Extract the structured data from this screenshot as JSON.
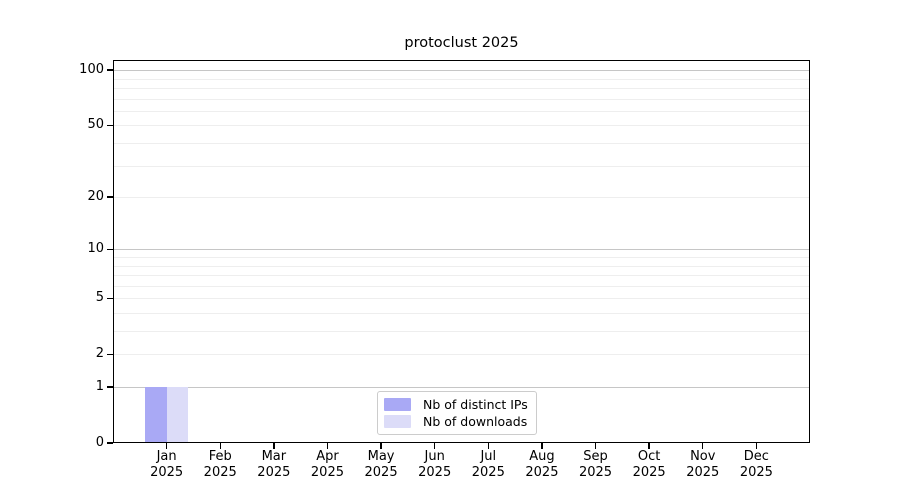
{
  "chart_data": {
    "type": "bar",
    "title": "protoclust 2025",
    "year": "2025",
    "categories": [
      "Jan",
      "Feb",
      "Mar",
      "Apr",
      "May",
      "Jun",
      "Jul",
      "Aug",
      "Sep",
      "Oct",
      "Nov",
      "Dec"
    ],
    "series": [
      {
        "name": "Nb of distinct IPs",
        "color": "#a9a9f5",
        "values": [
          1,
          0,
          0,
          0,
          0,
          0,
          0,
          0,
          0,
          0,
          0,
          0
        ]
      },
      {
        "name": "Nb of downloads",
        "color": "#dcdcf8",
        "values": [
          1,
          0,
          0,
          0,
          0,
          0,
          0,
          0,
          0,
          0,
          0,
          0
        ]
      }
    ],
    "yscale": "log1p",
    "ylim": [
      0,
      114
    ],
    "y_ticks": [
      0,
      1,
      2,
      5,
      10,
      20,
      50,
      100
    ],
    "y_major_gridlines": [
      1,
      10,
      100
    ],
    "y_minor_gridlines": [
      2,
      3,
      4,
      5,
      6,
      7,
      8,
      9,
      20,
      30,
      40,
      50,
      60,
      70,
      80,
      90
    ],
    "grid": true,
    "legend_position": "bottom-center",
    "colors": {
      "background": "#ffffff",
      "axis": "#000000",
      "text": "#000000",
      "major_grid": "#c6c6c6",
      "minor_grid": "#eeeeee",
      "legend_border": "#cccccc"
    }
  }
}
